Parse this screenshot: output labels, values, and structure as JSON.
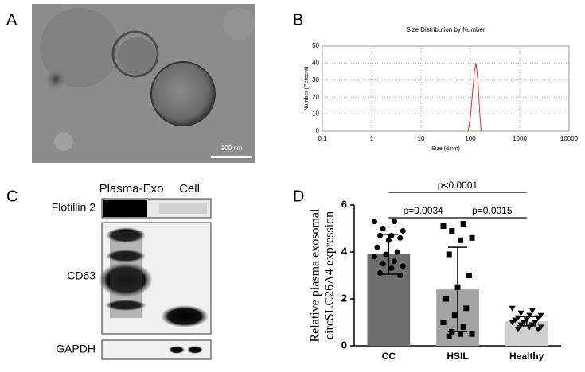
{
  "panels": [
    "A",
    "B",
    "C",
    "D"
  ],
  "scale_bar": "100 nm",
  "blot": {
    "lanes": [
      "Plasma-Exo",
      "Cell"
    ],
    "rows": [
      "Flotillin 2",
      "CD63",
      "GAPDH"
    ]
  },
  "chart_data": [
    {
      "type": "line",
      "title": "Size Distribution by Number",
      "xlabel": "Size (d.nm)",
      "ylabel": "Number (Percent)",
      "log_x": true,
      "grid": true,
      "xlim": [
        0.1,
        10000
      ],
      "xticks": [
        0.1,
        1,
        10,
        100,
        1000,
        10000
      ],
      "ylim": [
        0,
        50
      ],
      "yticks": [
        0,
        10,
        20,
        30,
        40,
        50
      ],
      "series": [
        {
          "color": "#e03030",
          "x": [
            90,
            100,
            110,
            122,
            130,
            142,
            155,
            165
          ],
          "values": [
            0,
            8,
            22,
            36,
            40,
            30,
            10,
            0
          ]
        }
      ]
    },
    {
      "type": "bar",
      "ylabel_lines": [
        "Relative plasma exosomal",
        "circSLC26A4 expression"
      ],
      "categories": [
        "CC",
        "HSIL",
        "Healthy"
      ],
      "values": [
        3.9,
        2.4,
        1.05
      ],
      "errors": [
        0.85,
        1.8,
        0.2
      ],
      "colors": [
        "#6e6e6e",
        "#a3a3a3",
        "#cfcfcf"
      ],
      "markers": [
        "circle",
        "square",
        "triangle"
      ],
      "points": [
        [
          5.3,
          5.3,
          5.0,
          4.9,
          4.7,
          4.7,
          4.6,
          4.5,
          4.2,
          4.0,
          3.9,
          3.8,
          3.6,
          3.5,
          3.4,
          3.3,
          3.1,
          3.0
        ],
        [
          5.1,
          5.2,
          4.9,
          4.6,
          4.5,
          3.9,
          3.0,
          2.5,
          2.0,
          1.6,
          1.3,
          1.0,
          0.8,
          0.6,
          0.5,
          0.5,
          0.4
        ],
        [
          1.6,
          1.5,
          1.4,
          1.3,
          1.3,
          1.2,
          1.2,
          1.1,
          1.1,
          1.0,
          1.0,
          1.0,
          0.9,
          0.9,
          0.8,
          0.8,
          0.7,
          0.7
        ]
      ],
      "ylim": [
        0,
        6
      ],
      "yticks": [
        0,
        2,
        4,
        6
      ],
      "comparisons": [
        {
          "from": 0,
          "to": 1,
          "label": "p=0.0034"
        },
        {
          "from": 0,
          "to": 2,
          "label": "p<0.0001"
        },
        {
          "from": 1,
          "to": 2,
          "label": "p=0.0015"
        }
      ]
    }
  ]
}
